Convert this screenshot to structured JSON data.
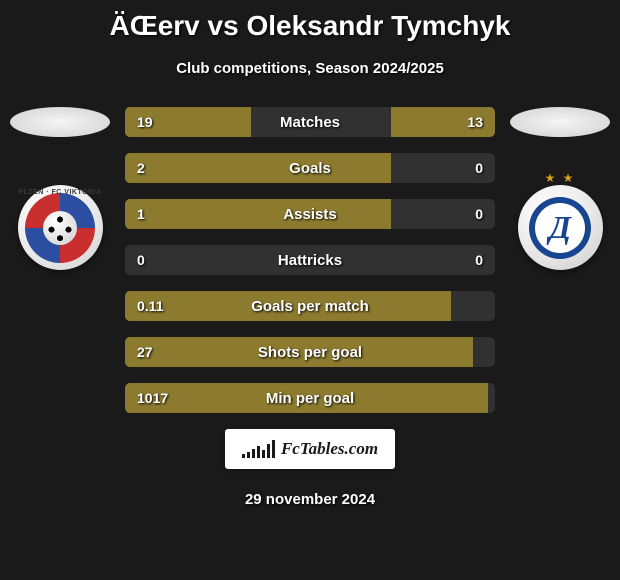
{
  "title": "ÄŒerv vs Oleksandr Tymchyk",
  "subtitle": "Club competitions, Season 2024/2025",
  "footer_brand": "FcTables.com",
  "footer_date": "29 november 2024",
  "colors": {
    "bar_fill": "#8c7b2f",
    "bar_track": "rgba(255,255,255,0.10)",
    "background": "#1a1a1a",
    "text": "#ffffff"
  },
  "clubs": {
    "left": {
      "name": "FC Viktoria Plzeň",
      "badge_text": "PLZEN · FC VIKTORIA"
    },
    "right": {
      "name": "Dynamo Kyiv",
      "badge_letter": "Д",
      "stars": "★ ★"
    }
  },
  "stats": [
    {
      "label": "Matches",
      "left_value": "19",
      "right_value": "13",
      "left_pct": 34,
      "right_pct": 28
    },
    {
      "label": "Goals",
      "left_value": "2",
      "right_value": "0",
      "left_pct": 72,
      "right_pct": 0
    },
    {
      "label": "Assists",
      "left_value": "1",
      "right_value": "0",
      "left_pct": 72,
      "right_pct": 0
    },
    {
      "label": "Hattricks",
      "left_value": "0",
      "right_value": "0",
      "left_pct": 0,
      "right_pct": 0
    },
    {
      "label": "Goals per match",
      "left_value": "0.11",
      "right_value": "",
      "left_pct": 88,
      "right_pct": 0
    },
    {
      "label": "Shots per goal",
      "left_value": "27",
      "right_value": "",
      "left_pct": 94,
      "right_pct": 0
    },
    {
      "label": "Min per goal",
      "left_value": "1017",
      "right_value": "",
      "left_pct": 98,
      "right_pct": 0
    }
  ],
  "fc_bars_heights": [
    4,
    6,
    9,
    12,
    8,
    14,
    18
  ]
}
